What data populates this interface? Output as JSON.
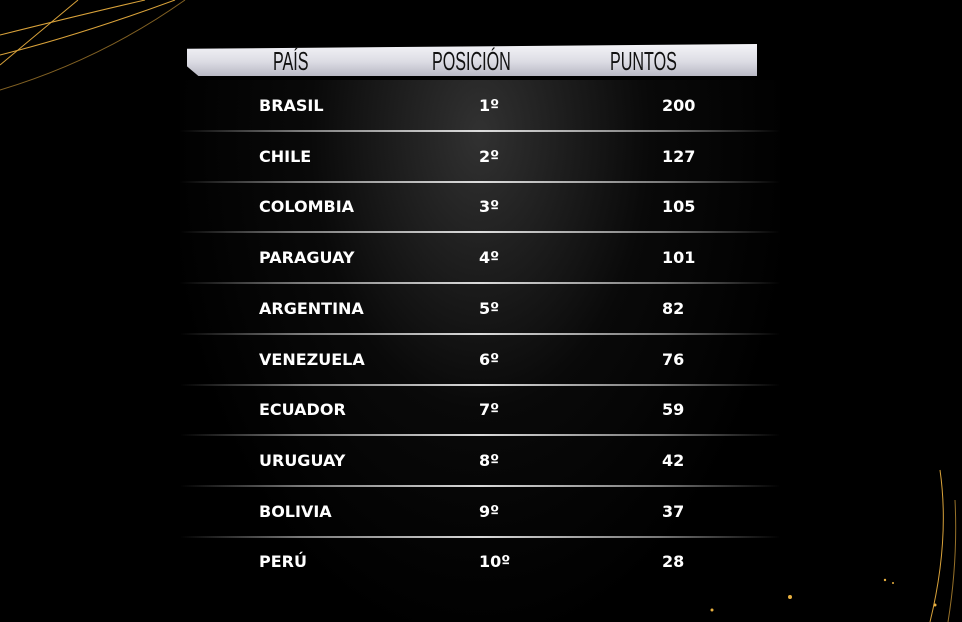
{
  "header": {
    "country": "PAÍS",
    "position": "POSICIÓN",
    "points": "PUNTOS"
  },
  "rows": [
    {
      "country": "BRASIL",
      "position": "1º",
      "points": "200"
    },
    {
      "country": "CHILE",
      "position": "2º",
      "points": "127"
    },
    {
      "country": "COLOMBIA",
      "position": "3º",
      "points": "105"
    },
    {
      "country": "PARAGUAY",
      "position": "4º",
      "points": "101"
    },
    {
      "country": "ARGENTINA",
      "position": "5º",
      "points": "82"
    },
    {
      "country": "VENEZUELA",
      "position": "6º",
      "points": "76"
    },
    {
      "country": "ECUADOR",
      "position": "7º",
      "points": "59"
    },
    {
      "country": "URUGUAY",
      "position": "8º",
      "points": "42"
    },
    {
      "country": "BOLIVIA",
      "position": "9º",
      "points": "37"
    },
    {
      "country": "PERÚ",
      "position": "10º",
      "points": "28"
    }
  ],
  "colors": {
    "background": "#000000",
    "accent_lines": "#d9a23a",
    "text": "#ffffff"
  }
}
